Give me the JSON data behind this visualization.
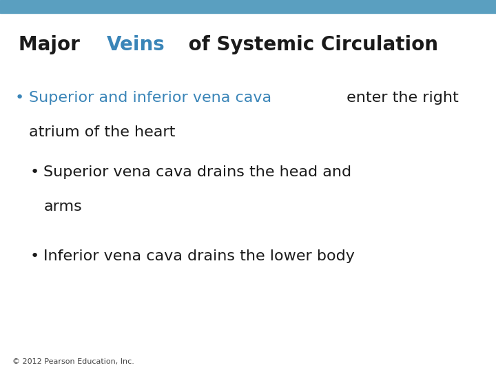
{
  "title_black1": "Major ",
  "title_blue": "Veins",
  "title_black2": " of Systemic Circulation",
  "title_fontsize": 20,
  "title_color_black": "#1a1a1a",
  "title_color_blue": "#3a85b8",
  "header_bar_color": "#5a9fc0",
  "background_color": "#ffffff",
  "bullet1_blue": "Superior and inferior vena cava",
  "bullet1_black_line1": " enter the right",
  "bullet1_black_line2": "atrium of the heart",
  "bullet2_line1": "Superior vena cava drains the head and",
  "bullet2_line2": "arms",
  "bullet3_text": "Inferior vena cava drains the lower body",
  "bullet_color_blue": "#3a85b8",
  "bullet_color_black": "#1a1a1a",
  "text_fontsize": 16,
  "footer_text": "© 2012 Pearson Education, Inc.",
  "footer_fontsize": 8,
  "footer_color": "#444444"
}
